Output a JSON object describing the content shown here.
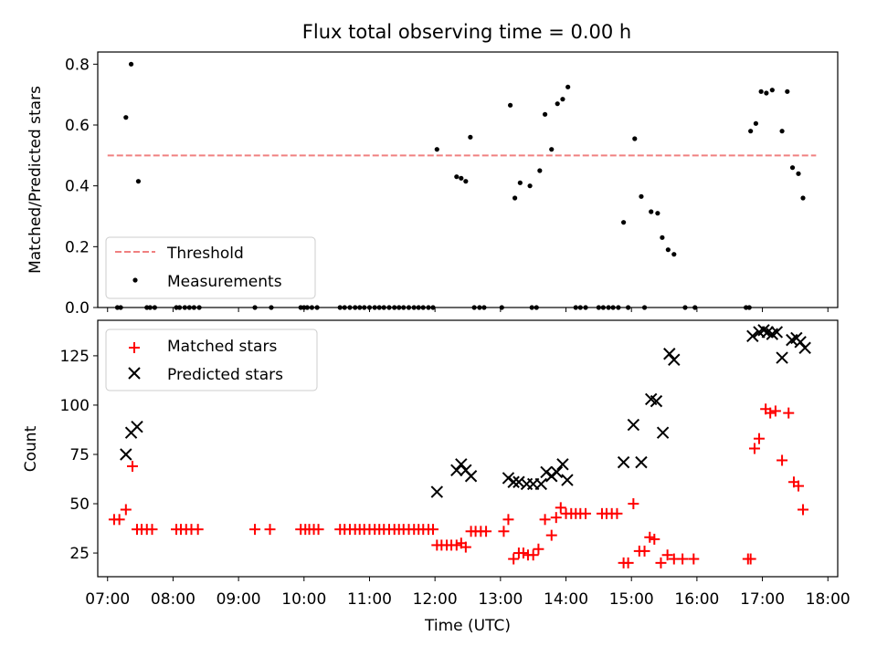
{
  "title": "Flux total observing time = 0.00 h",
  "chart_data": [
    {
      "type": "scatter",
      "ylabel": "Matched/Predicted stars",
      "xlim": [
        6.85,
        18.15
      ],
      "ylim": [
        0,
        0.84
      ],
      "yticks": [
        0.0,
        0.2,
        0.4,
        0.6,
        0.8
      ],
      "ytick_labels": [
        "0.0",
        "0.2",
        "0.4",
        "0.6",
        "0.8"
      ],
      "legend": {
        "location": "lower-left",
        "entries": [
          "Threshold",
          "Measurements"
        ]
      },
      "threshold": {
        "name": "Threshold",
        "y": 0.5,
        "x_range": [
          7.0,
          17.82
        ],
        "color": "#f08080",
        "style": "dashed"
      },
      "measurements": {
        "name": "Measurements",
        "color": "#000000",
        "x": [
          7.28,
          7.36,
          7.47,
          12.03,
          12.33,
          12.4,
          12.47,
          12.54,
          13.15,
          13.22,
          13.3,
          13.45,
          13.6,
          13.68,
          13.78,
          13.87,
          13.95,
          14.03,
          14.88,
          15.05,
          15.15,
          15.3,
          15.4,
          15.47,
          15.56,
          15.65,
          16.82,
          16.9,
          16.98,
          17.06,
          17.15,
          17.3,
          17.38,
          17.46,
          17.55,
          17.62,
          7.15,
          7.2,
          7.6,
          7.65,
          7.72,
          8.05,
          8.1,
          8.18,
          8.25,
          8.32,
          8.4,
          9.25,
          9.5,
          9.95,
          10.0,
          10.05,
          10.12,
          10.2,
          10.55,
          10.62,
          10.7,
          10.78,
          10.85,
          10.92,
          11.0,
          11.08,
          11.15,
          11.22,
          11.3,
          11.38,
          11.45,
          11.52,
          11.6,
          11.68,
          11.75,
          11.82,
          11.9,
          11.97,
          12.6,
          12.68,
          12.75,
          13.02,
          13.48,
          13.55,
          14.15,
          14.22,
          14.3,
          14.5,
          14.57,
          14.65,
          14.72,
          14.8,
          14.95,
          15.2,
          15.82,
          15.97,
          16.75,
          16.8
        ],
        "y": [
          0.625,
          0.8,
          0.415,
          0.52,
          0.43,
          0.425,
          0.415,
          0.56,
          0.665,
          0.36,
          0.41,
          0.4,
          0.45,
          0.635,
          0.52,
          0.67,
          0.685,
          0.725,
          0.28,
          0.555,
          0.365,
          0.315,
          0.31,
          0.23,
          0.19,
          0.175,
          0.58,
          0.605,
          0.71,
          0.705,
          0.715,
          0.58,
          0.71,
          0.46,
          0.44,
          0.36,
          0,
          0,
          0,
          0,
          0,
          0,
          0,
          0,
          0,
          0,
          0,
          0,
          0,
          0,
          0,
          0,
          0,
          0,
          0,
          0,
          0,
          0,
          0,
          0,
          0,
          0,
          0,
          0,
          0,
          0,
          0,
          0,
          0,
          0,
          0,
          0,
          0,
          0,
          0,
          0,
          0,
          0,
          0,
          0,
          0,
          0,
          0,
          0,
          0,
          0,
          0,
          0,
          0,
          0,
          0,
          0,
          0,
          0
        ]
      }
    },
    {
      "type": "scatter",
      "xlabel": "Time (UTC)",
      "ylabel": "Count",
      "xlim": [
        6.85,
        18.15
      ],
      "ylim": [
        13,
        143
      ],
      "yticks": [
        25,
        50,
        75,
        100,
        125
      ],
      "ytick_labels": [
        "25",
        "50",
        "75",
        "100",
        "125"
      ],
      "xticks": [
        7,
        8,
        9,
        10,
        11,
        12,
        13,
        14,
        15,
        16,
        17,
        18
      ],
      "xtick_labels": [
        "07:00",
        "08:00",
        "09:00",
        "10:00",
        "11:00",
        "12:00",
        "13:00",
        "14:00",
        "15:00",
        "16:00",
        "17:00",
        "18:00"
      ],
      "legend": {
        "location": "upper-left",
        "entries": [
          "Matched stars",
          "Predicted stars"
        ]
      },
      "series": [
        {
          "name": "Matched stars",
          "marker": "+",
          "color": "#ff0000",
          "x": [
            7.1,
            7.18,
            7.28,
            7.38,
            7.45,
            7.52,
            7.6,
            7.68,
            8.05,
            8.12,
            8.2,
            8.28,
            8.38,
            9.25,
            9.48,
            9.95,
            10.02,
            10.08,
            10.15,
            10.22,
            10.55,
            10.62,
            10.7,
            10.78,
            10.85,
            10.92,
            11.0,
            11.08,
            11.15,
            11.22,
            11.3,
            11.38,
            11.45,
            11.52,
            11.6,
            11.68,
            11.75,
            11.82,
            11.9,
            11.97,
            12.03,
            12.1,
            12.18,
            12.25,
            12.33,
            12.4,
            12.47,
            12.55,
            12.62,
            12.7,
            12.78,
            13.05,
            13.12,
            13.2,
            13.28,
            13.35,
            13.42,
            13.5,
            13.58,
            13.68,
            13.78,
            13.85,
            13.92,
            14.0,
            14.08,
            14.15,
            14.22,
            14.3,
            14.55,
            14.62,
            14.7,
            14.78,
            14.88,
            14.95,
            15.03,
            15.12,
            15.2,
            15.28,
            15.35,
            15.45,
            15.55,
            15.65,
            15.78,
            15.95,
            16.78,
            16.82,
            16.88,
            16.95,
            17.05,
            17.12,
            17.2,
            17.3,
            17.4,
            17.48,
            17.55,
            17.62
          ],
          "y": [
            42,
            42,
            47,
            69,
            37,
            37,
            37,
            37,
            37,
            37,
            37,
            37,
            37,
            37,
            37,
            37,
            37,
            37,
            37,
            37,
            37,
            37,
            37,
            37,
            37,
            37,
            37,
            37,
            37,
            37,
            37,
            37,
            37,
            37,
            37,
            37,
            37,
            37,
            37,
            37,
            29,
            29,
            29,
            29,
            29,
            30,
            28,
            36,
            36,
            36,
            36,
            36,
            42,
            22,
            25,
            25,
            24,
            24,
            27,
            42,
            34,
            43,
            48,
            45,
            45,
            45,
            45,
            45,
            45,
            45,
            45,
            45,
            20,
            20,
            50,
            26,
            26,
            33,
            32,
            20,
            24,
            22,
            22,
            22,
            22,
            22,
            78,
            83,
            98,
            96,
            97,
            72,
            96,
            61,
            59,
            47
          ]
        },
        {
          "name": "Predicted stars",
          "marker": "x",
          "color": "#000000",
          "x": [
            7.28,
            7.36,
            7.45,
            12.03,
            12.33,
            12.4,
            12.47,
            12.55,
            13.12,
            13.2,
            13.28,
            13.4,
            13.5,
            13.62,
            13.7,
            13.78,
            13.86,
            13.95,
            14.02,
            14.88,
            15.03,
            15.15,
            15.3,
            15.38,
            15.48,
            15.58,
            15.65,
            16.85,
            16.95,
            17.02,
            17.08,
            17.15,
            17.22,
            17.3,
            17.45,
            17.52,
            17.58,
            17.65
          ],
          "y": [
            75,
            86,
            89,
            56,
            67,
            70,
            67,
            64,
            63,
            61,
            61,
            60,
            60,
            60,
            66,
            64,
            66,
            70,
            62,
            71,
            90,
            71,
            103,
            102,
            86,
            126,
            123,
            135,
            137,
            138,
            137,
            136,
            137,
            124,
            133,
            134,
            132,
            129
          ]
        }
      ]
    }
  ]
}
